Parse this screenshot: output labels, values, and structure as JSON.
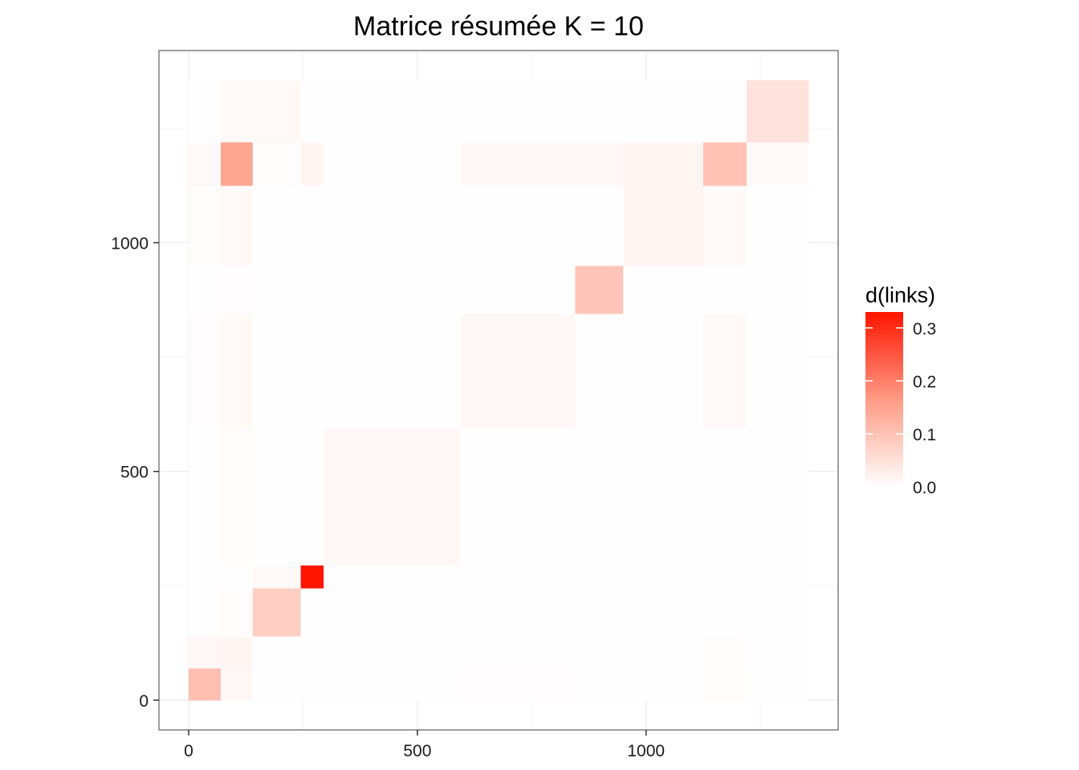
{
  "chart_data": {
    "type": "heatmap",
    "title": "Matrice résumée K =  10",
    "xlabel": "",
    "ylabel": "",
    "xlim": [
      -65,
      1420
    ],
    "ylim": [
      -65,
      1420
    ],
    "x_ticks": [
      0,
      500,
      1000
    ],
    "y_ticks": [
      0,
      500,
      1000
    ],
    "grid": true,
    "legend": {
      "title": "d(links)",
      "position": "right",
      "range": [
        0,
        0.33
      ],
      "ticks": [
        0.0,
        0.1,
        0.2,
        0.3
      ],
      "tick_labels": [
        "0.0",
        "0.1",
        "0.2",
        "0.3"
      ],
      "colors": {
        "low": "#ffffff",
        "high": "#ff1500"
      }
    },
    "boundaries": [
      0,
      70,
      140,
      245,
      295,
      595,
      845,
      950,
      1125,
      1220,
      1355
    ],
    "matrix": [
      [
        0.105,
        0.012,
        0.002,
        0.001,
        0.001,
        0.003,
        0.002,
        0.002,
        0.005,
        0.002
      ],
      [
        0.012,
        0.015,
        0.001,
        0.002,
        0.001,
        0.001,
        0.001,
        0.001,
        0.004,
        0.001
      ],
      [
        0.001,
        0.005,
        0.08,
        0.001,
        0.001,
        0.001,
        0.001,
        0.001,
        0.001,
        0.001
      ],
      [
        0.001,
        0.002,
        0.01,
        0.33,
        0.001,
        0.001,
        0.001,
        0.001,
        0.001,
        0.001
      ],
      [
        0.001,
        0.004,
        0.002,
        0.002,
        0.012,
        0.002,
        0.001,
        0.002,
        0.001,
        0.001
      ],
      [
        0.003,
        0.01,
        0.001,
        0.001,
        0.002,
        0.012,
        0.001,
        0.002,
        0.008,
        0.001
      ],
      [
        0.001,
        0.003,
        0.001,
        0.001,
        0.001,
        0.001,
        0.095,
        0.001,
        0.002,
        0.001
      ],
      [
        0.004,
        0.01,
        0.001,
        0.002,
        0.001,
        0.002,
        0.001,
        0.015,
        0.01,
        0.002
      ],
      [
        0.008,
        0.145,
        0.005,
        0.015,
        0.002,
        0.012,
        0.012,
        0.015,
        0.1,
        0.008
      ],
      [
        0.001,
        0.01,
        0.01,
        0.002,
        0.002,
        0.002,
        0.002,
        0.002,
        0.002,
        0.048
      ]
    ]
  }
}
